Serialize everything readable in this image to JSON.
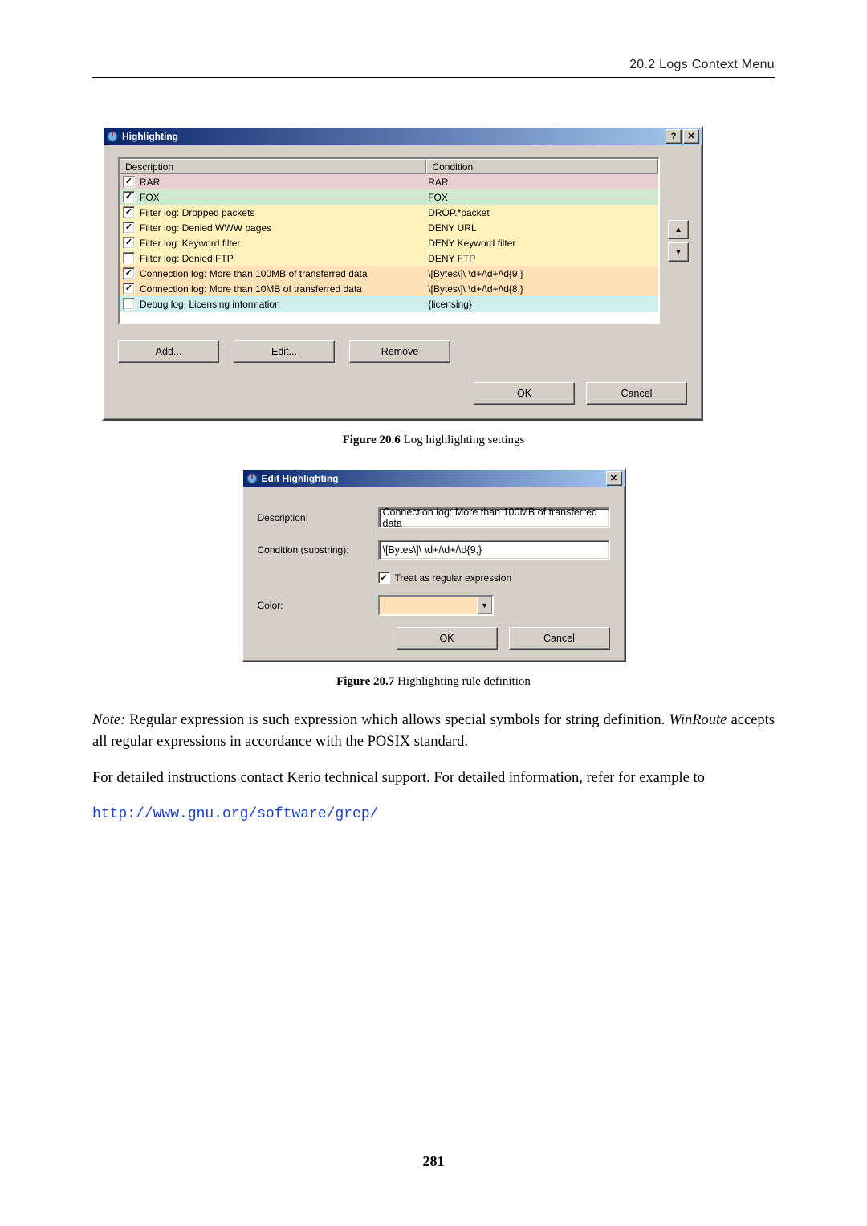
{
  "running_header": "20.2  Logs Context Menu",
  "highlighting_dialog": {
    "title": "Highlighting",
    "columns": {
      "description": "Description",
      "condition": "Condition"
    },
    "rows": [
      {
        "checked": true,
        "desc": "RAR",
        "cond": "RAR",
        "bg": "#e7cfcf"
      },
      {
        "checked": true,
        "desc": "FOX",
        "cond": "FOX",
        "bg": "#cfe9cf"
      },
      {
        "checked": true,
        "desc": "Filter log: Dropped packets",
        "cond": "DROP.*packet",
        "bg": "#fff3bd"
      },
      {
        "checked": true,
        "desc": "Filter log: Denied WWW pages",
        "cond": "DENY URL",
        "bg": "#fff3bd"
      },
      {
        "checked": true,
        "desc": "Filter log: Keyword filter",
        "cond": "DENY Keyword filter",
        "bg": "#fff3bd"
      },
      {
        "checked": false,
        "desc": "Filter log: Denied FTP",
        "cond": "DENY FTP",
        "bg": "#fff3bd"
      },
      {
        "checked": true,
        "desc": "Connection log: More than 100MB of transferred data",
        "cond": "\\[Bytes\\]\\ \\d+/\\d+/\\d{9,}",
        "bg": "#ffe1b8"
      },
      {
        "checked": true,
        "desc": "Connection log: More than 10MB of transferred data",
        "cond": "\\[Bytes\\]\\ \\d+/\\d+/\\d{8,}",
        "bg": "#ffe1b8"
      },
      {
        "checked": false,
        "desc": "Debug log: Licensing information",
        "cond": "{licensing}",
        "bg": "#cfeef0"
      }
    ],
    "buttons": {
      "add": "Add...",
      "edit": "Edit...",
      "remove": "Remove",
      "ok": "OK",
      "cancel": "Cancel"
    },
    "help_glyph": "?",
    "close_glyph": "✕"
  },
  "caption1_label": "Figure 20.6",
  "caption1_text": "   Log highlighting settings",
  "edit_dialog": {
    "title": "Edit Highlighting",
    "close_glyph": "✕",
    "labels": {
      "description": "Description:",
      "condition": "Condition (substring):",
      "regex": "Treat as regular expression",
      "color": "Color:"
    },
    "values": {
      "description": "Connection log: More than 100MB of transferred data",
      "condition": "\\[Bytes\\]\\ \\d+/\\d+/\\d{9,}",
      "regex_checked": true,
      "color_swatch": "#ffe1b8"
    },
    "buttons": {
      "ok": "OK",
      "cancel": "Cancel"
    }
  },
  "caption2_label": "Figure 20.7",
  "caption2_text": "   Highlighting rule definition",
  "para1_prefix": "Note:",
  "para1": " Regular expression is such expression which allows special symbols for string definition. ",
  "para1_em": "WinRoute",
  "para1_tail": " accepts all regular expressions in accordance with the POSIX standard.",
  "para2": "For detailed instructions contact Kerio technical support. For detailed information, refer for example to",
  "link": "http://www.gnu.org/software/grep/",
  "page_number": "281"
}
